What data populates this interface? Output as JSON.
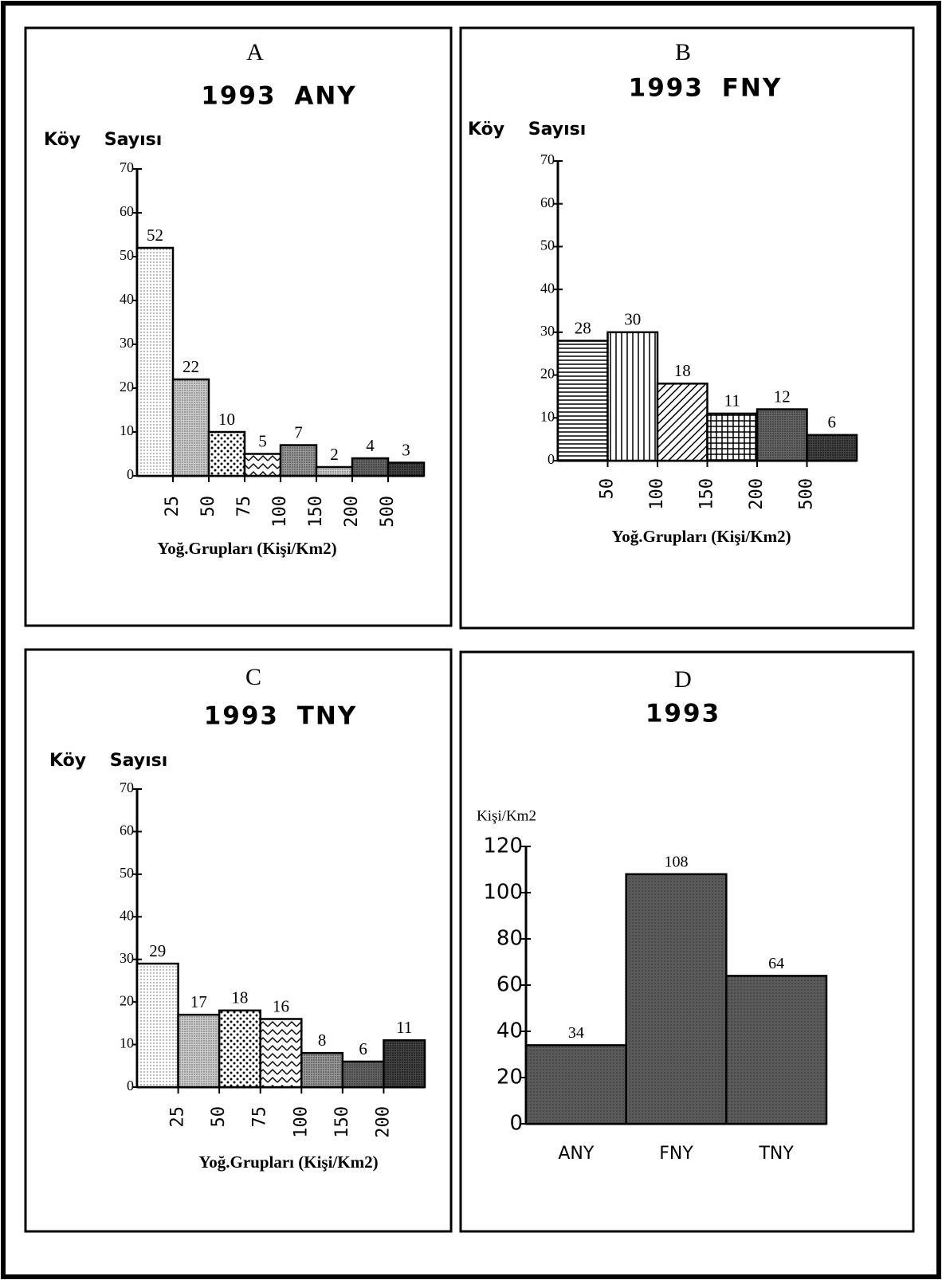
{
  "chart_data": [
    {
      "type": "histogram",
      "title": "A",
      "subtitle": "1993 ANY",
      "y_label": "Köy Sayısı",
      "x_label": "Yoğ.Grupları (Kişi/Km2)",
      "bins": [
        null,
        25,
        50,
        75,
        100,
        150,
        200,
        500,
        null
      ],
      "values": [
        52,
        22,
        10,
        5,
        7,
        2,
        4,
        3
      ],
      "ylim": [
        0,
        70
      ],
      "yticks": [
        0,
        10,
        20,
        30,
        40,
        50,
        60,
        70
      ]
    },
    {
      "type": "histogram",
      "title": "B",
      "subtitle": "1993 FNY",
      "y_label": "Köy Sayısı",
      "x_label": "Yoğ.Grupları (Kişi/Km2)",
      "bins": [
        null,
        50,
        100,
        150,
        200,
        500,
        null
      ],
      "values": [
        28,
        30,
        18,
        11,
        12,
        6
      ],
      "ylim": [
        0,
        70
      ],
      "yticks": [
        0,
        10,
        20,
        30,
        40,
        50,
        60,
        70
      ]
    },
    {
      "type": "histogram",
      "title": "C",
      "subtitle": "1993 TNY",
      "y_label": "Köy Sayısı",
      "x_label": "Yoğ.Grupları (Kişi/Km2)",
      "bins": [
        null,
        25,
        50,
        75,
        100,
        150,
        200,
        null
      ],
      "values": [
        29,
        17,
        18,
        16,
        8,
        6,
        11
      ],
      "ylim": [
        0,
        70
      ],
      "yticks": [
        0,
        10,
        20,
        30,
        40,
        50,
        60,
        70
      ]
    },
    {
      "type": "bar",
      "title": "D",
      "subtitle": "1993",
      "y_label": "Kişi/Km2",
      "categories": [
        "ANY",
        "FNY",
        "TNY"
      ],
      "values": [
        34,
        108,
        64
      ],
      "ylim": [
        0,
        120
      ],
      "yticks": [
        0,
        20,
        40,
        60,
        80,
        100,
        120
      ]
    }
  ]
}
